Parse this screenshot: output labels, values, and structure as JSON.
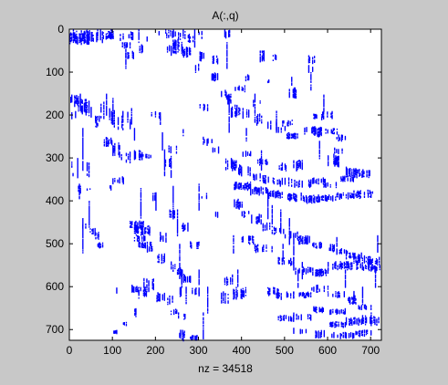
{
  "figure": {
    "background_color": "#c8c8c8",
    "axes_background": "#ffffff",
    "marker_color": "#0000ff"
  },
  "chart_data": {
    "type": "scatter",
    "subtype": "sparsity-pattern",
    "title": "A(:,q)",
    "xlabel": "nz = 34518",
    "ylabel": "",
    "nz": 34518,
    "xlim": [
      0,
      725
    ],
    "ylim": [
      0,
      725
    ],
    "y_reversed": true,
    "x_ticks": [
      0,
      100,
      200,
      300,
      400,
      500,
      600,
      700
    ],
    "y_ticks": [
      0,
      100,
      200,
      300,
      400,
      500,
      600,
      700
    ],
    "x_tick_labels": [
      "0",
      "100",
      "200",
      "300",
      "400",
      "500",
      "600",
      "700"
    ],
    "y_tick_labels": [
      "0",
      "100",
      "200",
      "300",
      "400",
      "500",
      "600",
      "700"
    ],
    "grid": false,
    "legend": false,
    "blocks": [
      [
        0,
        50,
        0,
        35,
        0.45
      ],
      [
        30,
        55,
        0,
        35,
        0.4
      ],
      [
        60,
        85,
        0,
        30,
        0.35
      ],
      [
        85,
        105,
        0,
        25,
        0.3
      ],
      [
        115,
        130,
        5,
        25,
        0.3
      ],
      [
        135,
        150,
        5,
        25,
        0.3
      ],
      [
        0,
        25,
        150,
        180,
        0.4
      ],
      [
        20,
        45,
        160,
        200,
        0.4
      ],
      [
        45,
        60,
        170,
        210,
        0.35
      ],
      [
        55,
        70,
        200,
        215,
        0.3
      ],
      [
        70,
        85,
        160,
        210,
        0.3
      ],
      [
        90,
        105,
        180,
        230,
        0.3
      ],
      [
        110,
        125,
        190,
        245,
        0.3
      ],
      [
        130,
        145,
        180,
        220,
        0.25
      ],
      [
        0,
        15,
        185,
        210,
        0.25
      ],
      [
        60,
        75,
        215,
        230,
        0.3
      ],
      [
        80,
        100,
        250,
        275,
        0.3
      ],
      [
        100,
        120,
        260,
        300,
        0.3
      ],
      [
        120,
        140,
        285,
        310,
        0.3
      ],
      [
        150,
        170,
        280,
        305,
        0.3
      ],
      [
        170,
        190,
        290,
        300,
        0.3
      ],
      [
        0,
        5,
        300,
        330,
        0.3
      ],
      [
        5,
        10,
        330,
        345,
        0.3
      ],
      [
        40,
        55,
        310,
        345,
        0.3
      ],
      [
        20,
        25,
        360,
        385,
        0.3
      ],
      [
        40,
        50,
        370,
        375,
        0.25
      ],
      [
        80,
        100,
        360,
        375,
        0.25
      ],
      [
        100,
        130,
        340,
        360,
        0.25
      ],
      [
        30,
        45,
        450,
        465,
        0.25
      ],
      [
        45,
        60,
        460,
        480,
        0.3
      ],
      [
        60,
        70,
        470,
        490,
        0.3
      ],
      [
        65,
        80,
        495,
        510,
        0.3
      ],
      [
        140,
        175,
        445,
        465,
        0.45
      ],
      [
        150,
        190,
        455,
        480,
        0.4
      ],
      [
        150,
        175,
        480,
        495,
        0.35
      ],
      [
        160,
        190,
        495,
        510,
        0.35
      ],
      [
        180,
        200,
        505,
        520,
        0.3
      ],
      [
        200,
        220,
        520,
        545,
        0.3
      ],
      [
        220,
        250,
        540,
        565,
        0.3
      ],
      [
        250,
        270,
        555,
        575,
        0.3
      ],
      [
        260,
        280,
        570,
        590,
        0.3
      ],
      [
        100,
        110,
        595,
        615,
        0.3
      ],
      [
        140,
        165,
        595,
        615,
        0.35
      ],
      [
        160,
        180,
        600,
        625,
        0.35
      ],
      [
        170,
        195,
        580,
        610,
        0.35
      ],
      [
        200,
        220,
        610,
        635,
        0.3
      ],
      [
        225,
        245,
        620,
        645,
        0.3
      ],
      [
        235,
        250,
        650,
        665,
        0.3
      ],
      [
        245,
        260,
        600,
        625,
        0.25
      ],
      [
        250,
        270,
        660,
        675,
        0.25
      ],
      [
        280,
        300,
        600,
        620,
        0.25
      ],
      [
        255,
        270,
        700,
        725,
        0.3
      ],
      [
        280,
        300,
        710,
        725,
        0.35
      ],
      [
        140,
        155,
        650,
        670,
        0.3
      ],
      [
        120,
        135,
        680,
        690,
        0.25
      ],
      [
        100,
        110,
        700,
        710,
        0.25
      ],
      [
        205,
        225,
        0,
        15,
        0.35
      ],
      [
        225,
        245,
        0,
        20,
        0.35
      ],
      [
        250,
        270,
        0,
        25,
        0.3
      ],
      [
        275,
        290,
        10,
        30,
        0.3
      ],
      [
        300,
        310,
        0,
        20,
        0.25
      ],
      [
        175,
        185,
        15,
        30,
        0.3
      ],
      [
        160,
        170,
        35,
        60,
        0.25
      ],
      [
        220,
        240,
        35,
        60,
        0.35
      ],
      [
        240,
        260,
        20,
        60,
        0.4
      ],
      [
        260,
        290,
        40,
        65,
        0.3
      ],
      [
        300,
        320,
        50,
        70,
        0.3
      ],
      [
        330,
        350,
        60,
        80,
        0.25
      ],
      [
        360,
        375,
        0,
        20,
        0.3
      ],
      [
        440,
        455,
        40,
        75,
        0.3
      ],
      [
        470,
        480,
        55,
        75,
        0.25
      ],
      [
        555,
        570,
        60,
        80,
        0.3
      ],
      [
        555,
        565,
        80,
        105,
        0.25
      ],
      [
        510,
        530,
        135,
        160,
        0.3
      ],
      [
        500,
        520,
        110,
        130,
        0.25
      ],
      [
        460,
        475,
        115,
        125,
        0.25
      ],
      [
        400,
        430,
        100,
        125,
        0.25
      ],
      [
        380,
        410,
        130,
        145,
        0.3
      ],
      [
        420,
        445,
        160,
        180,
        0.25
      ],
      [
        365,
        375,
        150,
        175,
        0.35
      ],
      [
        375,
        395,
        175,
        205,
        0.3
      ],
      [
        400,
        420,
        180,
        210,
        0.3
      ],
      [
        430,
        455,
        195,
        225,
        0.3
      ],
      [
        460,
        480,
        210,
        235,
        0.3
      ],
      [
        480,
        500,
        225,
        240,
        0.3
      ],
      [
        500,
        530,
        240,
        255,
        0.3
      ],
      [
        530,
        560,
        225,
        245,
        0.35
      ],
      [
        560,
        590,
        225,
        250,
        0.35
      ],
      [
        590,
        625,
        230,
        245,
        0.3
      ],
      [
        620,
        640,
        245,
        260,
        0.3
      ],
      [
        615,
        640,
        275,
        290,
        0.3
      ],
      [
        560,
        580,
        195,
        210,
        0.3
      ],
      [
        585,
        610,
        190,
        210,
        0.3
      ],
      [
        490,
        520,
        210,
        225,
        0.25
      ],
      [
        400,
        430,
        280,
        300,
        0.3
      ],
      [
        430,
        460,
        300,
        315,
        0.3
      ],
      [
        360,
        390,
        300,
        330,
        0.3
      ],
      [
        390,
        420,
        315,
        340,
        0.3
      ],
      [
        420,
        450,
        335,
        355,
        0.3
      ],
      [
        450,
        480,
        340,
        360,
        0.3
      ],
      [
        480,
        520,
        345,
        365,
        0.3
      ],
      [
        520,
        560,
        350,
        370,
        0.3
      ],
      [
        560,
        600,
        345,
        360,
        0.3
      ],
      [
        590,
        620,
        355,
        370,
        0.3
      ],
      [
        630,
        660,
        340,
        355,
        0.3
      ],
      [
        640,
        670,
        320,
        345,
        0.3
      ],
      [
        670,
        700,
        325,
        345,
        0.3
      ],
      [
        600,
        625,
        290,
        320,
        0.3
      ],
      [
        520,
        545,
        300,
        330,
        0.3
      ],
      [
        480,
        505,
        310,
        330,
        0.25
      ],
      [
        380,
        420,
        355,
        375,
        0.35
      ],
      [
        420,
        460,
        365,
        385,
        0.35
      ],
      [
        460,
        500,
        375,
        395,
        0.4
      ],
      [
        500,
        540,
        380,
        400,
        0.4
      ],
      [
        540,
        580,
        385,
        405,
        0.45
      ],
      [
        580,
        620,
        385,
        400,
        0.4
      ],
      [
        620,
        660,
        380,
        395,
        0.35
      ],
      [
        660,
        700,
        375,
        395,
        0.35
      ],
      [
        690,
        720,
        370,
        385,
        0.3
      ],
      [
        380,
        400,
        395,
        420,
        0.3
      ],
      [
        400,
        420,
        420,
        440,
        0.3
      ],
      [
        420,
        450,
        430,
        455,
        0.3
      ],
      [
        440,
        470,
        450,
        470,
        0.3
      ],
      [
        470,
        500,
        460,
        480,
        0.3
      ],
      [
        500,
        530,
        470,
        490,
        0.3
      ],
      [
        530,
        560,
        480,
        500,
        0.3
      ],
      [
        560,
        590,
        495,
        510,
        0.3
      ],
      [
        590,
        620,
        500,
        520,
        0.3
      ],
      [
        620,
        650,
        510,
        525,
        0.3
      ],
      [
        640,
        680,
        520,
        535,
        0.3
      ],
      [
        660,
        700,
        525,
        545,
        0.35
      ],
      [
        690,
        720,
        530,
        550,
        0.4
      ],
      [
        600,
        640,
        540,
        560,
        0.35
      ],
      [
        640,
        680,
        540,
        560,
        0.4
      ],
      [
        680,
        720,
        545,
        565,
        0.4
      ],
      [
        560,
        600,
        555,
        575,
        0.35
      ],
      [
        520,
        560,
        550,
        570,
        0.3
      ],
      [
        480,
        520,
        530,
        550,
        0.3
      ],
      [
        430,
        470,
        500,
        520,
        0.3
      ],
      [
        400,
        430,
        480,
        500,
        0.3
      ],
      [
        460,
        490,
        600,
        620,
        0.3
      ],
      [
        480,
        520,
        610,
        630,
        0.3
      ],
      [
        520,
        560,
        610,
        625,
        0.3
      ],
      [
        560,
        600,
        595,
        615,
        0.3
      ],
      [
        600,
        640,
        610,
        625,
        0.3
      ],
      [
        640,
        670,
        620,
        640,
        0.3
      ],
      [
        660,
        700,
        640,
        655,
        0.3
      ],
      [
        600,
        640,
        650,
        665,
        0.3
      ],
      [
        560,
        590,
        645,
        660,
        0.3
      ],
      [
        520,
        560,
        660,
        680,
        0.3
      ],
      [
        480,
        520,
        665,
        680,
        0.3
      ],
      [
        600,
        640,
        680,
        695,
        0.35
      ],
      [
        640,
        680,
        670,
        690,
        0.35
      ],
      [
        680,
        720,
        665,
        690,
        0.4
      ],
      [
        600,
        660,
        705,
        720,
        0.3
      ],
      [
        660,
        700,
        700,
        715,
        0.3
      ],
      [
        560,
        600,
        700,
        720,
        0.3
      ],
      [
        520,
        550,
        695,
        710,
        0.25
      ],
      [
        360,
        380,
        570,
        600,
        0.3
      ],
      [
        380,
        410,
        600,
        630,
        0.3
      ],
      [
        350,
        370,
        610,
        640,
        0.25
      ],
      [
        300,
        315,
        60,
        75,
        0.25
      ],
      [
        290,
        300,
        80,
        100,
        0.25
      ],
      [
        330,
        345,
        100,
        120,
        0.25
      ],
      [
        350,
        365,
        140,
        160,
        0.25
      ],
      [
        300,
        320,
        170,
        190,
        0.25
      ],
      [
        310,
        330,
        250,
        270,
        0.25
      ],
      [
        330,
        350,
        270,
        290,
        0.25
      ],
      [
        300,
        320,
        380,
        400,
        0.25
      ],
      [
        330,
        350,
        420,
        440,
        0.25
      ],
      [
        250,
        280,
        450,
        470,
        0.25
      ],
      [
        280,
        300,
        490,
        510,
        0.25
      ],
      [
        210,
        230,
        470,
        500,
        0.25
      ],
      [
        230,
        250,
        420,
        440,
        0.25
      ],
      [
        205,
        215,
        330,
        350,
        0.25
      ],
      [
        220,
        235,
        300,
        320,
        0.25
      ],
      [
        180,
        200,
        380,
        400,
        0.25
      ],
      [
        230,
        250,
        270,
        290,
        0.2
      ],
      [
        250,
        270,
        230,
        250,
        0.2
      ],
      [
        190,
        210,
        190,
        210,
        0.2
      ],
      [
        170,
        185,
        60,
        80,
        0.2
      ],
      [
        120,
        140,
        30,
        45,
        0.3
      ],
      [
        130,
        150,
        50,
        70,
        0.25
      ]
    ],
    "vertical_streaks": [
      [
        8,
        0,
        30
      ],
      [
        18,
        300,
        345
      ],
      [
        22,
        360,
        395
      ],
      [
        30,
        230,
        330
      ],
      [
        30,
        440,
        520
      ],
      [
        45,
        400,
        460
      ],
      [
        85,
        150,
        200
      ],
      [
        100,
        160,
        220
      ],
      [
        100,
        345,
        360
      ],
      [
        130,
        30,
        90
      ],
      [
        140,
        210,
        230
      ],
      [
        150,
        230,
        260
      ],
      [
        160,
        0,
        30
      ],
      [
        165,
        370,
        440
      ],
      [
        200,
        380,
        420
      ],
      [
        210,
        200,
        220
      ],
      [
        215,
        240,
        280
      ],
      [
        220,
        280,
        340
      ],
      [
        235,
        295,
        345
      ],
      [
        240,
        365,
        440
      ],
      [
        250,
        420,
        480
      ],
      [
        255,
        500,
        580
      ],
      [
        260,
        560,
        600
      ],
      [
        270,
        600,
        640
      ],
      [
        290,
        0,
        40
      ],
      [
        300,
        360,
        420
      ],
      [
        300,
        560,
        620
      ],
      [
        310,
        660,
        720
      ],
      [
        320,
        600,
        660
      ],
      [
        365,
        30,
        90
      ],
      [
        370,
        170,
        240
      ],
      [
        375,
        300,
        320
      ],
      [
        380,
        480,
        520
      ],
      [
        390,
        560,
        600
      ],
      [
        410,
        230,
        260
      ],
      [
        430,
        150,
        200
      ],
      [
        445,
        280,
        330
      ],
      [
        460,
        380,
        440
      ],
      [
        470,
        410,
        460
      ],
      [
        480,
        190,
        240
      ],
      [
        490,
        420,
        470
      ],
      [
        495,
        500,
        540
      ],
      [
        510,
        440,
        500
      ],
      [
        520,
        480,
        560
      ],
      [
        530,
        560,
        600
      ],
      [
        540,
        540,
        580
      ],
      [
        560,
        100,
        140
      ],
      [
        580,
        260,
        300
      ],
      [
        590,
        150,
        190
      ],
      [
        620,
        480,
        520
      ],
      [
        640,
        560,
        600
      ],
      [
        660,
        610,
        640
      ],
      [
        680,
        600,
        640
      ],
      [
        700,
        660,
        690
      ],
      [
        710,
        560,
        600
      ],
      [
        715,
        480,
        520
      ]
    ]
  }
}
